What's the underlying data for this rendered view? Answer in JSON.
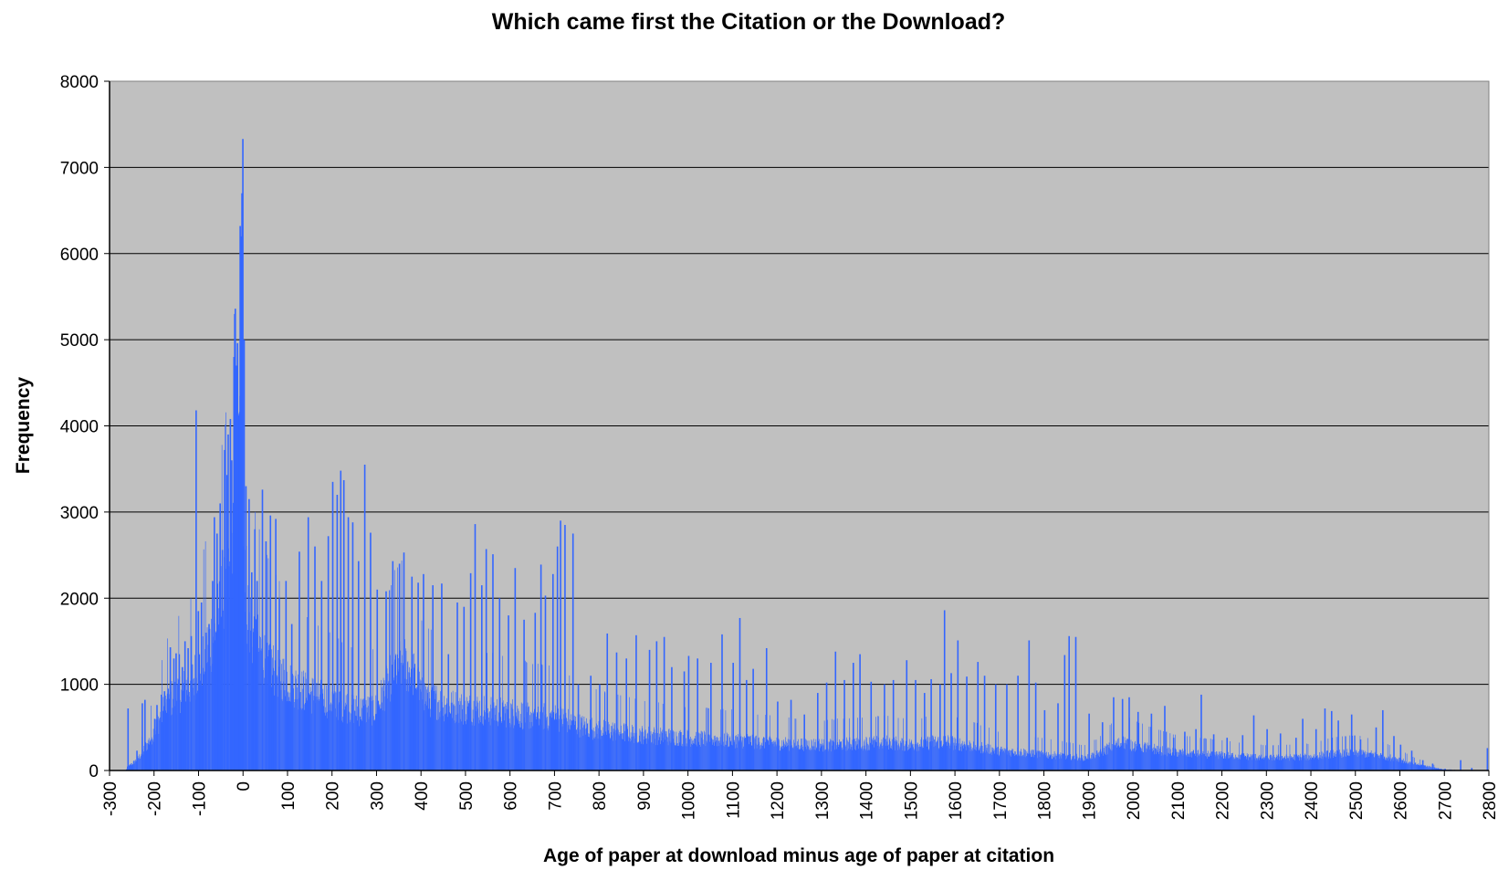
{
  "chart_data": {
    "type": "bar",
    "title": "Which came first the Citation or the Download?",
    "xlabel": "Age of paper at download minus age of paper at citation",
    "ylabel": "Frequency",
    "xlim": [
      -300,
      2800
    ],
    "ylim": [
      0,
      8000
    ],
    "x_ticks": [
      "-300",
      "-200",
      "-100",
      "0",
      "100",
      "200",
      "300",
      "400",
      "500",
      "600",
      "700",
      "800",
      "900",
      "1000",
      "1100",
      "1200",
      "1300",
      "1400",
      "1500",
      "1600",
      "1700",
      "1800",
      "1900",
      "2000",
      "2100",
      "2200",
      "2300",
      "2400",
      "2500",
      "2600",
      "2700",
      "2800"
    ],
    "y_ticks": [
      "0",
      "1000",
      "2000",
      "3000",
      "4000",
      "5000",
      "6000",
      "7000",
      "8000"
    ],
    "grid": true,
    "bar_color": "#3366ff",
    "plot_background": "#c0c0c0",
    "envelope": {
      "x": [
        -265,
        -255,
        -240,
        -225,
        -210,
        -195,
        -180,
        -165,
        -150,
        -130,
        -115,
        -105,
        -100,
        -90,
        -75,
        -60,
        -45,
        -30,
        -20,
        -12,
        -5,
        0,
        5,
        10,
        20,
        35,
        50,
        75,
        100,
        130,
        160,
        200,
        230,
        260,
        300,
        320,
        340,
        360,
        380,
        400,
        430,
        460,
        500,
        530,
        560,
        600,
        630,
        660,
        700,
        720,
        740,
        760,
        800,
        850,
        900,
        1000,
        1100,
        1150,
        1200,
        1300,
        1400,
        1450,
        1500,
        1550,
        1580,
        1600,
        1650,
        1700,
        1760,
        1800,
        1850,
        1890,
        1920,
        1950,
        1980,
        2000,
        2050,
        2100,
        2200,
        2300,
        2400,
        2450,
        2500,
        2550,
        2600,
        2620,
        2650,
        2680,
        2700,
        2720,
        2750,
        2790,
        2800
      ],
      "y": [
        0,
        60,
        120,
        220,
        360,
        520,
        700,
        820,
        900,
        950,
        1050,
        1150,
        1200,
        1300,
        1500,
        1700,
        2000,
        2300,
        2800,
        3300,
        4400,
        3000,
        2300,
        1900,
        1600,
        1450,
        1300,
        1150,
        1050,
        950,
        880,
        820,
        760,
        700,
        720,
        980,
        1200,
        1260,
        1150,
        900,
        820,
        760,
        720,
        720,
        700,
        680,
        650,
        640,
        620,
        600,
        560,
        520,
        480,
        450,
        420,
        380,
        360,
        340,
        320,
        300,
        320,
        330,
        300,
        330,
        340,
        320,
        280,
        230,
        210,
        190,
        170,
        150,
        190,
        280,
        330,
        300,
        250,
        210,
        180,
        150,
        160,
        200,
        210,
        180,
        130,
        90,
        60,
        30,
        10,
        5,
        2,
        0,
        0
      ]
    },
    "spikes": [
      {
        "x": -260,
        "y": 720
      },
      {
        "x": -240,
        "y": 230
      },
      {
        "x": -228,
        "y": 780
      },
      {
        "x": -222,
        "y": 820
      },
      {
        "x": -200,
        "y": 600
      },
      {
        "x": -195,
        "y": 760
      },
      {
        "x": -185,
        "y": 880
      },
      {
        "x": -178,
        "y": 920
      },
      {
        "x": -170,
        "y": 950
      },
      {
        "x": -165,
        "y": 1430
      },
      {
        "x": -157,
        "y": 1300
      },
      {
        "x": -152,
        "y": 1360
      },
      {
        "x": -145,
        "y": 1350
      },
      {
        "x": -138,
        "y": 1200
      },
      {
        "x": -132,
        "y": 1500
      },
      {
        "x": -125,
        "y": 1420
      },
      {
        "x": -118,
        "y": 1560
      },
      {
        "x": -107,
        "y": 4180
      },
      {
        "x": -102,
        "y": 1850
      },
      {
        "x": -95,
        "y": 1950
      },
      {
        "x": -85,
        "y": 1600
      },
      {
        "x": -78,
        "y": 1700
      },
      {
        "x": -70,
        "y": 2200
      },
      {
        "x": -66,
        "y": 2940
      },
      {
        "x": -60,
        "y": 2750
      },
      {
        "x": -53,
        "y": 3100
      },
      {
        "x": -48,
        "y": 2560
      },
      {
        "x": -43,
        "y": 3720
      },
      {
        "x": -38,
        "y": 3430
      },
      {
        "x": -35,
        "y": 3900
      },
      {
        "x": -30,
        "y": 4080
      },
      {
        "x": -27,
        "y": 3600
      },
      {
        "x": -22,
        "y": 4800
      },
      {
        "x": -19,
        "y": 5360
      },
      {
        "x": -16,
        "y": 4700
      },
      {
        "x": -14,
        "y": 4960
      },
      {
        "x": -10,
        "y": 4100
      },
      {
        "x": -8,
        "y": 6320
      },
      {
        "x": -6,
        "y": 6200
      },
      {
        "x": -4,
        "y": 6700
      },
      {
        "x": -2,
        "y": 7330
      },
      {
        "x": 1,
        "y": 5000
      },
      {
        "x": 5,
        "y": 3300
      },
      {
        "x": 12,
        "y": 3150
      },
      {
        "x": 18,
        "y": 2300
      },
      {
        "x": 25,
        "y": 2800
      },
      {
        "x": 30,
        "y": 2200
      },
      {
        "x": 42,
        "y": 3260
      },
      {
        "x": 50,
        "y": 2660
      },
      {
        "x": 60,
        "y": 2960
      },
      {
        "x": 72,
        "y": 2920
      },
      {
        "x": 80,
        "y": 2000
      },
      {
        "x": 95,
        "y": 2200
      },
      {
        "x": 108,
        "y": 1700
      },
      {
        "x": 125,
        "y": 2540
      },
      {
        "x": 145,
        "y": 2940
      },
      {
        "x": 160,
        "y": 2600
      },
      {
        "x": 175,
        "y": 2200
      },
      {
        "x": 190,
        "y": 2720
      },
      {
        "x": 200,
        "y": 3350
      },
      {
        "x": 210,
        "y": 3200
      },
      {
        "x": 218,
        "y": 3480
      },
      {
        "x": 225,
        "y": 3370
      },
      {
        "x": 235,
        "y": 2940
      },
      {
        "x": 245,
        "y": 2880
      },
      {
        "x": 258,
        "y": 2430
      },
      {
        "x": 272,
        "y": 3550
      },
      {
        "x": 285,
        "y": 2760
      },
      {
        "x": 300,
        "y": 2100
      },
      {
        "x": 320,
        "y": 2080
      },
      {
        "x": 335,
        "y": 2430
      },
      {
        "x": 350,
        "y": 2400
      },
      {
        "x": 360,
        "y": 2530
      },
      {
        "x": 378,
        "y": 2250
      },
      {
        "x": 392,
        "y": 2180
      },
      {
        "x": 404,
        "y": 2280
      },
      {
        "x": 425,
        "y": 2150
      },
      {
        "x": 445,
        "y": 2170
      },
      {
        "x": 460,
        "y": 1350
      },
      {
        "x": 480,
        "y": 1950
      },
      {
        "x": 495,
        "y": 1900
      },
      {
        "x": 510,
        "y": 2290
      },
      {
        "x": 520,
        "y": 2860
      },
      {
        "x": 535,
        "y": 2150
      },
      {
        "x": 545,
        "y": 2570
      },
      {
        "x": 560,
        "y": 2510
      },
      {
        "x": 575,
        "y": 2000
      },
      {
        "x": 595,
        "y": 1800
      },
      {
        "x": 610,
        "y": 2350
      },
      {
        "x": 630,
        "y": 1750
      },
      {
        "x": 655,
        "y": 1830
      },
      {
        "x": 668,
        "y": 2390
      },
      {
        "x": 678,
        "y": 2030
      },
      {
        "x": 695,
        "y": 2280
      },
      {
        "x": 705,
        "y": 2600
      },
      {
        "x": 712,
        "y": 2900
      },
      {
        "x": 722,
        "y": 2850
      },
      {
        "x": 740,
        "y": 2750
      },
      {
        "x": 752,
        "y": 1000
      },
      {
        "x": 780,
        "y": 1100
      },
      {
        "x": 800,
        "y": 1000
      },
      {
        "x": 817,
        "y": 1590
      },
      {
        "x": 838,
        "y": 1370
      },
      {
        "x": 860,
        "y": 1300
      },
      {
        "x": 882,
        "y": 1570
      },
      {
        "x": 912,
        "y": 1400
      },
      {
        "x": 928,
        "y": 1500
      },
      {
        "x": 945,
        "y": 1550
      },
      {
        "x": 962,
        "y": 1200
      },
      {
        "x": 990,
        "y": 1150
      },
      {
        "x": 1000,
        "y": 1330
      },
      {
        "x": 1020,
        "y": 1300
      },
      {
        "x": 1050,
        "y": 1250
      },
      {
        "x": 1075,
        "y": 1580
      },
      {
        "x": 1100,
        "y": 1250
      },
      {
        "x": 1115,
        "y": 1770
      },
      {
        "x": 1130,
        "y": 1050
      },
      {
        "x": 1145,
        "y": 1180
      },
      {
        "x": 1175,
        "y": 1420
      },
      {
        "x": 1200,
        "y": 800
      },
      {
        "x": 1230,
        "y": 820
      },
      {
        "x": 1260,
        "y": 650
      },
      {
        "x": 1290,
        "y": 900
      },
      {
        "x": 1310,
        "y": 1020
      },
      {
        "x": 1330,
        "y": 1380
      },
      {
        "x": 1350,
        "y": 1050
      },
      {
        "x": 1370,
        "y": 1250
      },
      {
        "x": 1385,
        "y": 1350
      },
      {
        "x": 1410,
        "y": 1030
      },
      {
        "x": 1440,
        "y": 1000
      },
      {
        "x": 1460,
        "y": 1050
      },
      {
        "x": 1490,
        "y": 1280
      },
      {
        "x": 1510,
        "y": 1050
      },
      {
        "x": 1530,
        "y": 900
      },
      {
        "x": 1545,
        "y": 1060
      },
      {
        "x": 1565,
        "y": 1000
      },
      {
        "x": 1575,
        "y": 1860
      },
      {
        "x": 1590,
        "y": 1130
      },
      {
        "x": 1605,
        "y": 1510
      },
      {
        "x": 1625,
        "y": 1090
      },
      {
        "x": 1650,
        "y": 1260
      },
      {
        "x": 1665,
        "y": 1100
      },
      {
        "x": 1690,
        "y": 1000
      },
      {
        "x": 1715,
        "y": 1000
      },
      {
        "x": 1740,
        "y": 1100
      },
      {
        "x": 1765,
        "y": 1510
      },
      {
        "x": 1780,
        "y": 1020
      },
      {
        "x": 1800,
        "y": 700
      },
      {
        "x": 1830,
        "y": 780
      },
      {
        "x": 1845,
        "y": 1340
      },
      {
        "x": 1855,
        "y": 1560
      },
      {
        "x": 1870,
        "y": 1550
      },
      {
        "x": 1900,
        "y": 660
      },
      {
        "x": 1930,
        "y": 560
      },
      {
        "x": 1955,
        "y": 850
      },
      {
        "x": 1975,
        "y": 830
      },
      {
        "x": 1990,
        "y": 850
      },
      {
        "x": 2010,
        "y": 680
      },
      {
        "x": 2040,
        "y": 660
      },
      {
        "x": 2070,
        "y": 750
      },
      {
        "x": 2090,
        "y": 380
      },
      {
        "x": 2115,
        "y": 450
      },
      {
        "x": 2140,
        "y": 480
      },
      {
        "x": 2152,
        "y": 880
      },
      {
        "x": 2180,
        "y": 420
      },
      {
        "x": 2210,
        "y": 380
      },
      {
        "x": 2245,
        "y": 410
      },
      {
        "x": 2270,
        "y": 640
      },
      {
        "x": 2300,
        "y": 480
      },
      {
        "x": 2330,
        "y": 430
      },
      {
        "x": 2365,
        "y": 380
      },
      {
        "x": 2380,
        "y": 600
      },
      {
        "x": 2410,
        "y": 480
      },
      {
        "x": 2430,
        "y": 720
      },
      {
        "x": 2445,
        "y": 690
      },
      {
        "x": 2460,
        "y": 580
      },
      {
        "x": 2490,
        "y": 650
      },
      {
        "x": 2510,
        "y": 360
      },
      {
        "x": 2545,
        "y": 500
      },
      {
        "x": 2560,
        "y": 700
      },
      {
        "x": 2585,
        "y": 400
      },
      {
        "x": 2600,
        "y": 300
      },
      {
        "x": 2625,
        "y": 230
      },
      {
        "x": 2650,
        "y": 120
      },
      {
        "x": 2672,
        "y": 80
      },
      {
        "x": 2700,
        "y": 20
      },
      {
        "x": 2735,
        "y": 120
      },
      {
        "x": 2760,
        "y": 30
      },
      {
        "x": 2795,
        "y": 260
      }
    ]
  }
}
